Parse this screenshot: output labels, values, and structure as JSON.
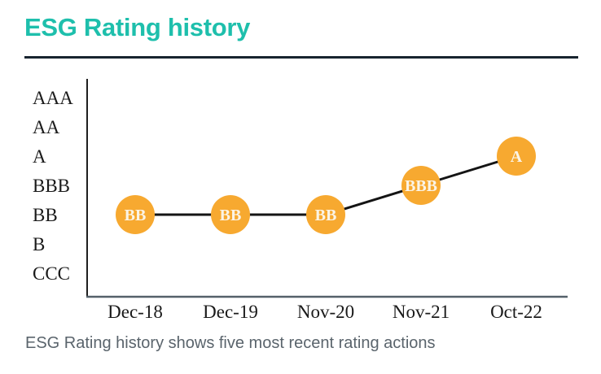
{
  "page": {
    "title": "ESG Rating history",
    "caption": "ESG Rating history shows five most recent rating actions"
  },
  "colors": {
    "title_accent": "#1EBFAC",
    "divider": "#18242F",
    "point_fill": "#F7A930",
    "point_label": "#FBF4E6",
    "connector_line": "#141414",
    "y_axis_line": "#1E1E1E",
    "x_axis_line": "#55616A",
    "axis_label_text": "#1A1A1A",
    "caption_text": "#5A646C"
  },
  "chart_data": {
    "type": "line",
    "title": "ESG Rating history",
    "categories": [
      "Dec-18",
      "Dec-19",
      "Nov-20",
      "Nov-21",
      "Oct-22"
    ],
    "values": [
      "BB",
      "BB",
      "BB",
      "BBB",
      "A"
    ],
    "point_labels": [
      "BB",
      "BB",
      "BB",
      "BBB",
      "A"
    ],
    "y_axis_categories_top_to_bottom": [
      "AAA",
      "AA",
      "A",
      "BBB",
      "BB",
      "B",
      "CCC"
    ],
    "xlabel": "",
    "ylabel": "",
    "legend": "none",
    "grid": "off",
    "caption": "ESG Rating history shows five most recent rating actions"
  }
}
